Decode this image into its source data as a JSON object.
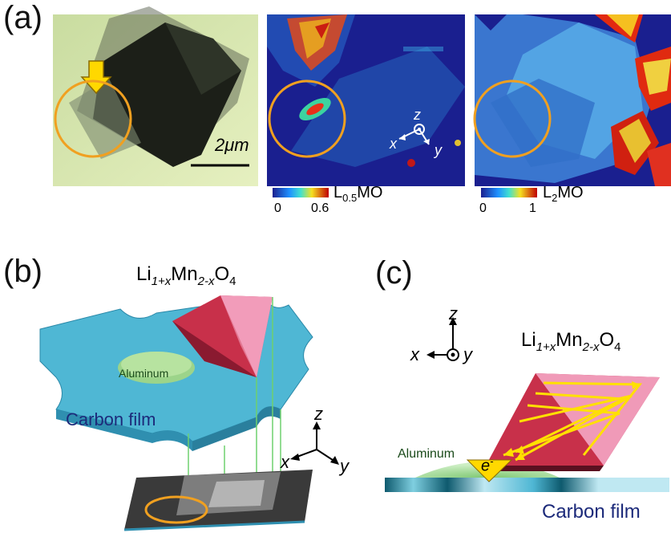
{
  "panel_a": {
    "label": "(a)",
    "scale_bar": "2μm",
    "map1": {
      "label_main": "L",
      "label_sub": "0.5",
      "label_tail": "MO",
      "tick_min": "0",
      "tick_max": "0.6",
      "axes": {
        "x": "x",
        "y": "y",
        "z": "z"
      }
    },
    "map2": {
      "label_main": "L",
      "label_sub": "2",
      "label_tail": "MO",
      "tick_min": "0",
      "tick_max": "1"
    }
  },
  "panel_b": {
    "label": "(b)",
    "formula": {
      "a": "Li",
      "b": "1+x",
      "c": "Mn",
      "d": "2-x",
      "e": "O",
      "f": "4"
    },
    "aluminum": "Aluminum",
    "carbon_film": "Carbon film",
    "axes": {
      "x": "x",
      "y": "y",
      "z": "z"
    }
  },
  "panel_c": {
    "label": "(c)",
    "formula": {
      "a": "Li",
      "b": "1+x",
      "c": "Mn",
      "d": "2-x",
      "e": "O",
      "f": "4"
    },
    "aluminum": "Aluminum",
    "electron": "e",
    "electron_sup": "-",
    "carbon_film": "Carbon film",
    "axes": {
      "x": "x",
      "y": "y",
      "z": "z"
    }
  },
  "colors": {
    "orange_circle": "#f0a020",
    "carbon_blue": "#4fb7d4",
    "crystal_red": "#c8304a",
    "crystal_pink": "#f090b0",
    "arrow_yellow": "#ffe000",
    "map_background": "#1a1f8f"
  }
}
